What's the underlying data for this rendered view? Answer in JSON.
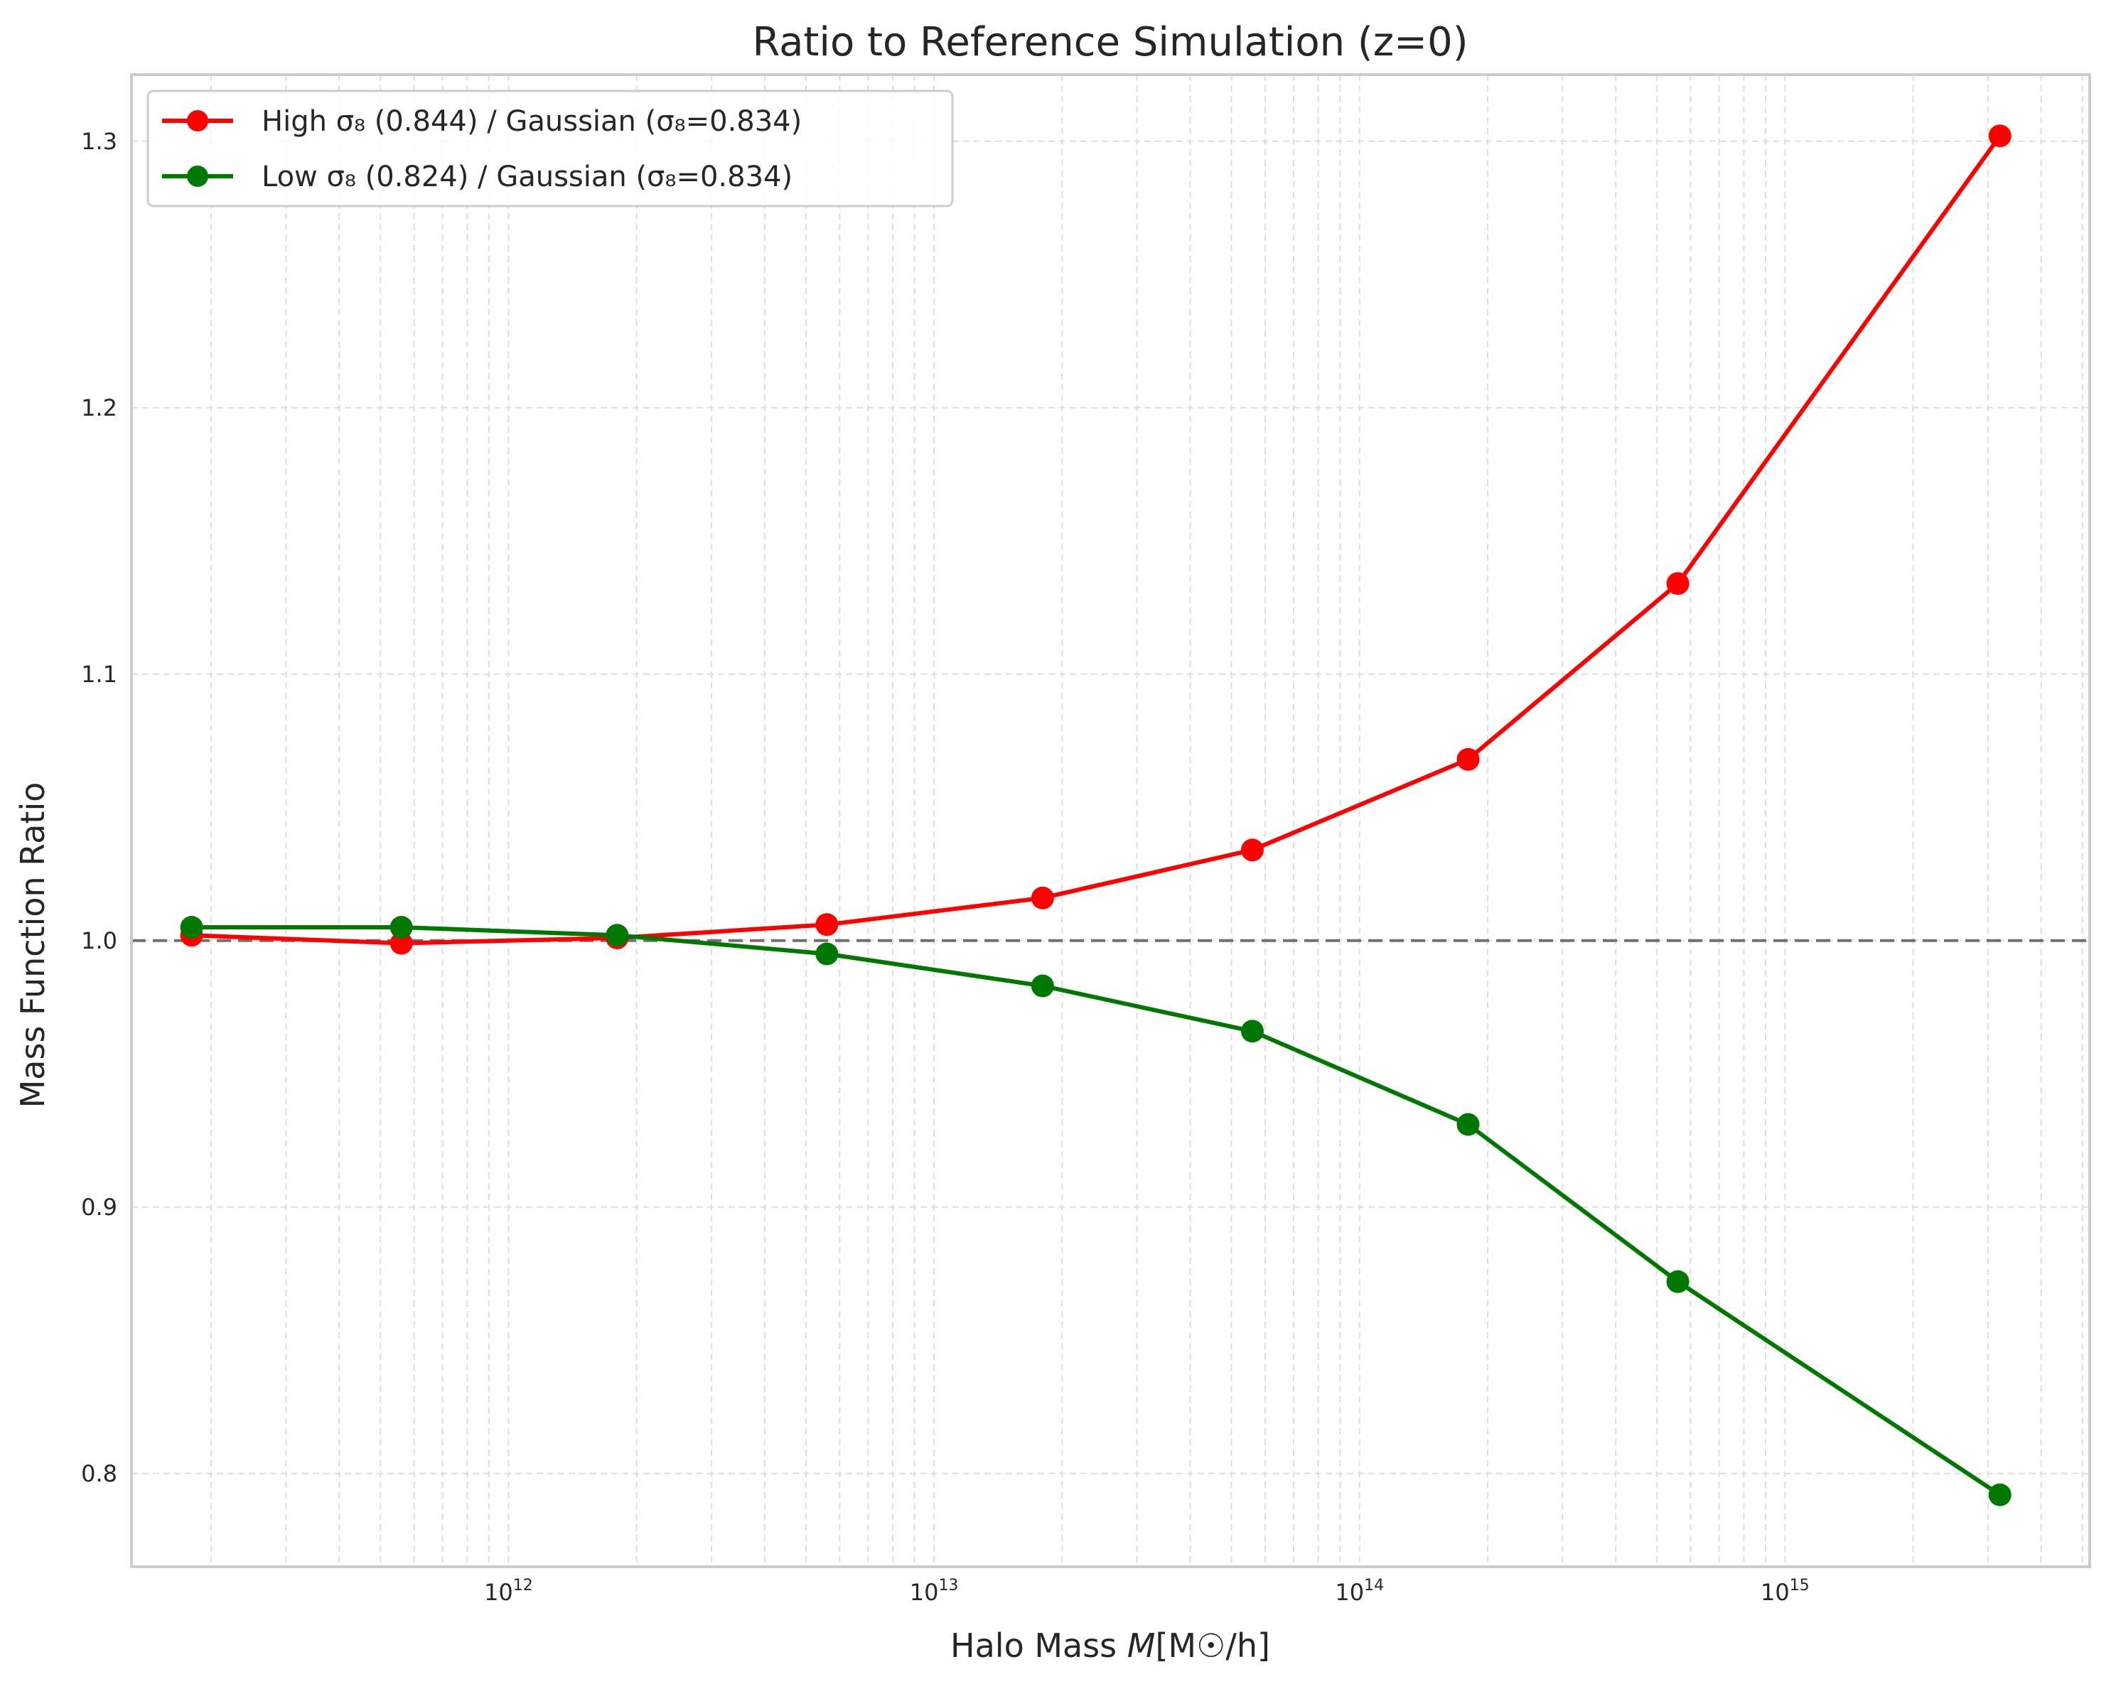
{
  "chart_data": {
    "type": "line",
    "title": "Ratio to Reference Simulation (z=0)",
    "xlabel_prefix": "Halo Mass ",
    "xlabel_var": "M",
    "xlabel_units": "[M☉/h]",
    "ylabel": "Mass Function Ratio",
    "xscale": "log",
    "xlim": [
      130000000000.0,
      5200000000000000.0
    ],
    "ylim": [
      0.765,
      1.325
    ],
    "grid": true,
    "legend_position": "upper-left",
    "reference_line": 1.0,
    "x_ticks": [
      {
        "value": 1000000000000.0,
        "base": "10",
        "exp": "12"
      },
      {
        "value": 10000000000000.0,
        "base": "10",
        "exp": "13"
      },
      {
        "value": 100000000000000.0,
        "base": "10",
        "exp": "14"
      },
      {
        "value": 1000000000000000.0,
        "base": "10",
        "exp": "15"
      }
    ],
    "y_ticks": [
      {
        "value": 0.8,
        "label": "0.8"
      },
      {
        "value": 0.9,
        "label": "0.9"
      },
      {
        "value": 1.0,
        "label": "1.0"
      },
      {
        "value": 1.1,
        "label": "1.1"
      },
      {
        "value": 1.2,
        "label": "1.2"
      },
      {
        "value": 1.3,
        "label": "1.3"
      }
    ],
    "x": [
      180000000000.0,
      560000000000.0,
      1800000000000.0,
      5600000000000.0,
      18000000000000.0,
      56000000000000.0,
      180000000000000.0,
      560000000000000.0,
      3200000000000000.0
    ],
    "series": [
      {
        "name": "High σ₈ (0.844) / Gaussian (σ₈=0.834)",
        "color": "#ff0000",
        "values": [
          1.002,
          0.999,
          1.001,
          1.006,
          1.016,
          1.034,
          1.068,
          1.134,
          1.302
        ]
      },
      {
        "name": "Low σ₈ (0.824) / Gaussian (σ₈=0.834)",
        "color": "#007700",
        "values": [
          1.005,
          1.005,
          1.002,
          0.995,
          0.983,
          0.966,
          0.931,
          0.872,
          0.792
        ]
      }
    ]
  }
}
